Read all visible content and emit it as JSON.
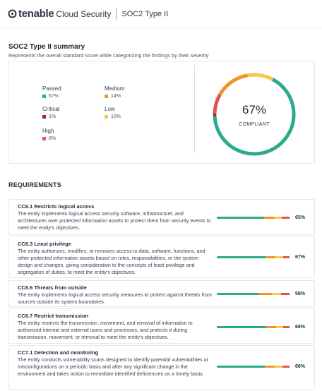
{
  "header": {
    "brand_word": "tenable",
    "brand_product": "Cloud Security",
    "page_title": "SOC2 Type II"
  },
  "summary": {
    "title": "SOC2 Type II summary",
    "description": "Represents the overall standard score while categorizing the findings by their severity",
    "legend": [
      {
        "label": "Passed",
        "value": "67%",
        "color": "#2aab8e"
      },
      {
        "label": "Medium",
        "value": "14%",
        "color": "#f0932b"
      },
      {
        "label": "Critical",
        "value": "1%",
        "color": "#b3202a"
      },
      {
        "label": "Low",
        "value": "10%",
        "color": "#f5c94a"
      },
      {
        "label": "High",
        "value": "8%",
        "color": "#e45456"
      }
    ],
    "score_value": "67%",
    "score_caption": "COMPLIANT"
  },
  "requirements": {
    "heading": "REQUIREMENTS",
    "items": [
      {
        "title": "CC6.1 Restricts logical access",
        "description": "The entity implements logical access security software, infrastructure, and architectures over protected information assets to protect them from security events to meet the entity's objectives.",
        "percent": "65%",
        "segments": [
          0.65,
          0.14,
          0.1,
          0.1,
          0.01
        ]
      },
      {
        "title": "CC6.3 Least privilege",
        "description": "The entity authorizes, modifies, or removes access to data, software, functions, and other protected information assets based on roles, responsibilities, or the system design and changes, giving consideration to the concepts of least privilege and segregation of duties, to meet the entity's objectives.",
        "percent": "67%",
        "segments": [
          0.67,
          0.14,
          0.1,
          0.08,
          0.01
        ]
      },
      {
        "title": "CC6.6 Threats from outside",
        "description": "The entity implements logical access security measures to protect against threats from sources outside its system boundaries.",
        "percent": "58%",
        "segments": [
          0.58,
          0.18,
          0.12,
          0.11,
          0.01
        ]
      },
      {
        "title": "CC6.7 Restrict transmission",
        "description": "The entity restricts the transmission, movement, and removal of information to authorized internal and external users and processes, and protects it during transmission, movement, or removal to meet the entity's objectives.",
        "percent": "68%",
        "segments": [
          0.68,
          0.14,
          0.09,
          0.08,
          0.01
        ]
      },
      {
        "title": "CC7.1 Detection and monitoring",
        "description": "The entity conducts vulnerability scans designed to identify potential vulnerabilities or misconfigurations on a periodic basis and after any significant change in the environment and takes action to remediate identified deficiencies on a timely basis.",
        "percent": "66%",
        "segments": [
          0.66,
          0.14,
          0.1,
          0.09,
          0.01
        ]
      }
    ]
  },
  "colors": {
    "passed": "#2aab8e",
    "medium": "#f0932b",
    "low": "#f5c94a",
    "high": "#e45456",
    "critical": "#b3202a"
  }
}
